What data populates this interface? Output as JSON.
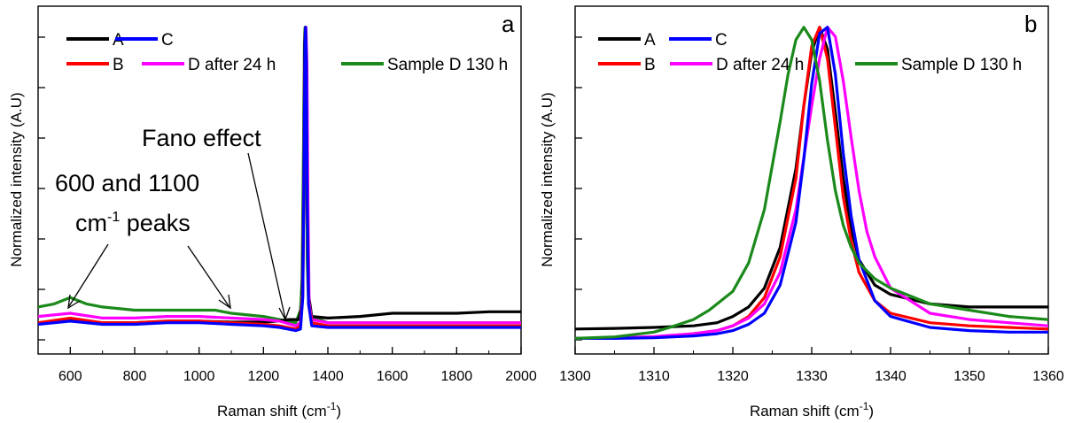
{
  "chart_data": [
    {
      "type": "line",
      "panel_label": "a",
      "xlabel": "Raman shift (cm",
      "xlabel_sup": "-1",
      "xlabel_tail": ")",
      "ylabel": "Normalized intensity (A.U)",
      "xlim": [
        500,
        2000
      ],
      "ylim": [
        0,
        1.05
      ],
      "xticks": [
        600,
        800,
        1000,
        1200,
        1400,
        1600,
        1800,
        2000
      ],
      "grid": false,
      "legend_position": "top-left",
      "legend_rows": [
        [
          "A",
          "C"
        ],
        [
          "B",
          "D after 24 h",
          "Sample D 130 h"
        ]
      ],
      "series": [
        {
          "name": "A",
          "color": "#000000",
          "x": [
            500,
            600,
            700,
            800,
            900,
            1000,
            1100,
            1200,
            1240,
            1280,
            1310,
            1320,
            1325,
            1328,
            1330,
            1332,
            1335,
            1340,
            1350,
            1400,
            1500,
            1600,
            1700,
            1800,
            1900,
            2000
          ],
          "y": [
            0.06,
            0.07,
            0.06,
            0.06,
            0.065,
            0.065,
            0.062,
            0.062,
            0.065,
            0.07,
            0.07,
            0.12,
            0.5,
            0.95,
            1.0,
            0.95,
            0.5,
            0.15,
            0.08,
            0.075,
            0.08,
            0.09,
            0.09,
            0.09,
            0.095,
            0.095
          ]
        },
        {
          "name": "B",
          "color": "#ff0000",
          "x": [
            500,
            600,
            700,
            800,
            900,
            1000,
            1100,
            1200,
            1250,
            1300,
            1315,
            1322,
            1326,
            1329,
            1331,
            1333,
            1336,
            1340,
            1350,
            1400,
            1600,
            1800,
            2000
          ],
          "y": [
            0.06,
            0.075,
            0.06,
            0.06,
            0.065,
            0.065,
            0.06,
            0.055,
            0.05,
            0.04,
            0.05,
            0.15,
            0.55,
            0.96,
            1.0,
            0.9,
            0.45,
            0.12,
            0.06,
            0.05,
            0.05,
            0.05,
            0.05
          ]
        },
        {
          "name": "C",
          "color": "#0000ff",
          "x": [
            500,
            600,
            700,
            800,
            900,
            1000,
            1100,
            1200,
            1250,
            1300,
            1315,
            1322,
            1326,
            1329,
            1331,
            1333,
            1336,
            1340,
            1350,
            1400,
            1600,
            1800,
            2000
          ],
          "y": [
            0.055,
            0.065,
            0.055,
            0.055,
            0.06,
            0.06,
            0.055,
            0.05,
            0.045,
            0.035,
            0.04,
            0.14,
            0.55,
            0.96,
            1.0,
            0.9,
            0.45,
            0.12,
            0.05,
            0.045,
            0.045,
            0.045,
            0.045
          ]
        },
        {
          "name": "D after 24 h",
          "color": "#ff00ff",
          "x": [
            500,
            600,
            700,
            800,
            900,
            1000,
            1100,
            1200,
            1250,
            1300,
            1315,
            1322,
            1326,
            1329,
            1332,
            1335,
            1338,
            1342,
            1350,
            1400,
            1600,
            1800,
            2000
          ],
          "y": [
            0.08,
            0.09,
            0.075,
            0.075,
            0.08,
            0.08,
            0.075,
            0.07,
            0.065,
            0.05,
            0.06,
            0.16,
            0.55,
            0.95,
            1.0,
            0.88,
            0.45,
            0.12,
            0.07,
            0.06,
            0.06,
            0.06,
            0.06
          ]
        },
        {
          "name": "Sample D 130 h",
          "color": "#1b8a1b",
          "x": [
            500,
            550,
            600,
            650,
            700,
            800,
            900,
            1000,
            1050,
            1100,
            1200,
            1250,
            1300,
            1315,
            1320,
            1324,
            1327,
            1329,
            1331,
            1333,
            1336,
            1340,
            1350,
            1400,
            1600,
            1800,
            2000
          ],
          "y": [
            0.11,
            0.12,
            0.14,
            0.12,
            0.11,
            0.1,
            0.1,
            0.1,
            0.1,
            0.09,
            0.08,
            0.07,
            0.06,
            0.1,
            0.2,
            0.6,
            0.95,
            1.0,
            0.92,
            0.6,
            0.25,
            0.12,
            0.08,
            0.06,
            0.06,
            0.06,
            0.06
          ]
        }
      ],
      "annotations": [
        {
          "lines": [
            "Fano effect"
          ]
        },
        {
          "lines": [
            "600 and 1100"
          ],
          "line2": {
            "pre": "cm",
            "sup": "-1",
            "post": " peaks"
          }
        }
      ]
    },
    {
      "type": "line",
      "panel_label": "b",
      "xlabel": "Raman shift (cm",
      "xlabel_sup": "-1",
      "xlabel_tail": ")",
      "ylabel": "Normalized intensity (A.U)",
      "xlim": [
        1300,
        1360
      ],
      "ylim": [
        0,
        1.05
      ],
      "xticks": [
        1300,
        1310,
        1320,
        1330,
        1340,
        1350,
        1360
      ],
      "grid": false,
      "legend_position": "top-left",
      "legend_rows": [
        [
          "A",
          "C"
        ],
        [
          "B",
          "D after 24 h",
          "Sample D 130 h"
        ]
      ],
      "series": [
        {
          "name": "A",
          "color": "#000000",
          "x": [
            1300,
            1305,
            1310,
            1315,
            1318,
            1320,
            1322,
            1324,
            1326,
            1328,
            1329,
            1330,
            1331,
            1332,
            1333,
            1334,
            1335,
            1336,
            1338,
            1340,
            1345,
            1350,
            1355,
            1360
          ],
          "y": [
            0.04,
            0.042,
            0.045,
            0.05,
            0.06,
            0.08,
            0.11,
            0.17,
            0.3,
            0.55,
            0.75,
            0.92,
            1.0,
            0.93,
            0.73,
            0.52,
            0.36,
            0.26,
            0.18,
            0.15,
            0.12,
            0.11,
            0.11,
            0.11
          ]
        },
        {
          "name": "B",
          "color": "#ff0000",
          "x": [
            1300,
            1305,
            1310,
            1315,
            1318,
            1320,
            1322,
            1324,
            1326,
            1328,
            1329,
            1330,
            1331,
            1332,
            1333,
            1334,
            1335,
            1336,
            1338,
            1340,
            1345,
            1350,
            1355,
            1360
          ],
          "y": [
            0.01,
            0.012,
            0.015,
            0.025,
            0.035,
            0.05,
            0.08,
            0.14,
            0.27,
            0.52,
            0.75,
            0.94,
            1.0,
            0.9,
            0.68,
            0.46,
            0.32,
            0.22,
            0.13,
            0.09,
            0.06,
            0.05,
            0.045,
            0.04
          ]
        },
        {
          "name": "C",
          "color": "#0000ff",
          "x": [
            1300,
            1305,
            1310,
            1315,
            1318,
            1320,
            1322,
            1324,
            1326,
            1328,
            1329,
            1330,
            1331,
            1332,
            1333,
            1334,
            1335,
            1336,
            1338,
            1340,
            1345,
            1350,
            1355,
            1360
          ],
          "y": [
            0.01,
            0.01,
            0.012,
            0.018,
            0.025,
            0.035,
            0.055,
            0.09,
            0.18,
            0.38,
            0.58,
            0.82,
            0.98,
            1.0,
            0.85,
            0.6,
            0.4,
            0.26,
            0.13,
            0.08,
            0.045,
            0.035,
            0.03,
            0.03
          ]
        },
        {
          "name": "D after 24 h",
          "color": "#ff00ff",
          "x": [
            1300,
            1305,
            1310,
            1315,
            1318,
            1320,
            1322,
            1324,
            1326,
            1328,
            1330,
            1331,
            1332,
            1333,
            1334,
            1335,
            1336,
            1337,
            1338,
            1340,
            1345,
            1350,
            1355,
            1360
          ],
          "y": [
            0.01,
            0.012,
            0.016,
            0.025,
            0.035,
            0.05,
            0.075,
            0.12,
            0.22,
            0.42,
            0.75,
            0.9,
            1.0,
            0.97,
            0.83,
            0.65,
            0.48,
            0.35,
            0.27,
            0.17,
            0.09,
            0.07,
            0.06,
            0.05
          ]
        },
        {
          "name": "Sample D 130 h",
          "color": "#1b8a1b",
          "x": [
            1300,
            1305,
            1310,
            1312,
            1315,
            1317,
            1320,
            1322,
            1324,
            1326,
            1327,
            1328,
            1329,
            1330,
            1331,
            1332,
            1333,
            1334,
            1335,
            1336,
            1338,
            1340,
            1345,
            1350,
            1355,
            1360
          ],
          "y": [
            0.01,
            0.015,
            0.03,
            0.045,
            0.07,
            0.1,
            0.16,
            0.25,
            0.42,
            0.7,
            0.85,
            0.96,
            1.0,
            0.96,
            0.83,
            0.64,
            0.48,
            0.37,
            0.3,
            0.25,
            0.2,
            0.17,
            0.12,
            0.1,
            0.08,
            0.07
          ]
        }
      ]
    }
  ]
}
